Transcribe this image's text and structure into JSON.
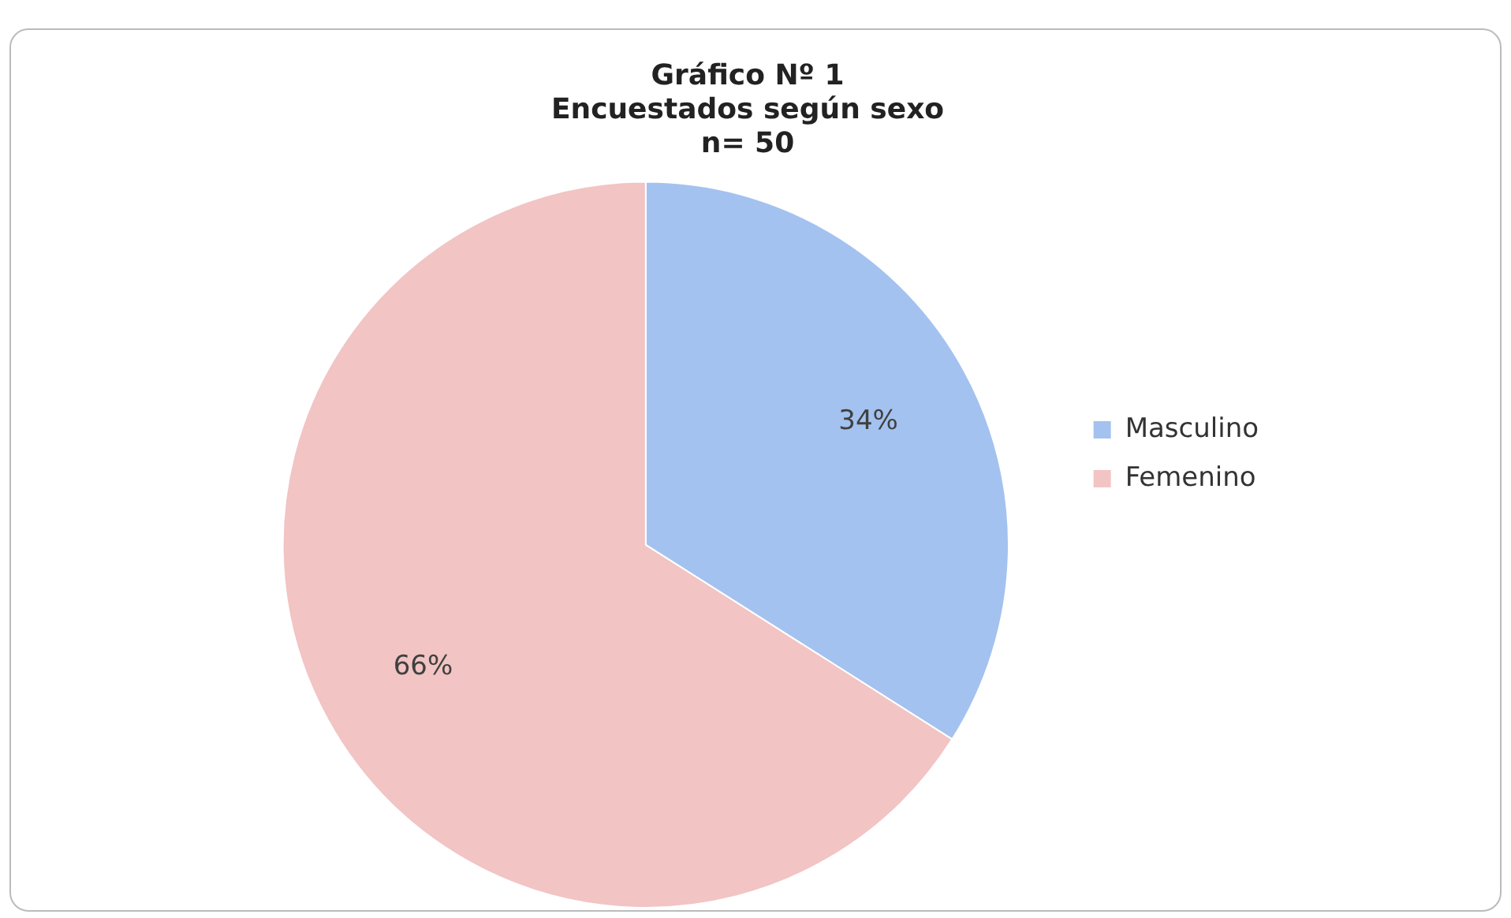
{
  "chart_data": {
    "type": "pie",
    "title": "Gráfico Nº 1\nEncuestados según sexo\nn= 50",
    "categories": [
      "Masculino",
      "Femenino"
    ],
    "values": [
      34,
      66
    ],
    "colors": [
      "#a4c2ef",
      "#f2c4c4"
    ],
    "value_labels": [
      "34%",
      "66%"
    ],
    "legend": "right"
  }
}
